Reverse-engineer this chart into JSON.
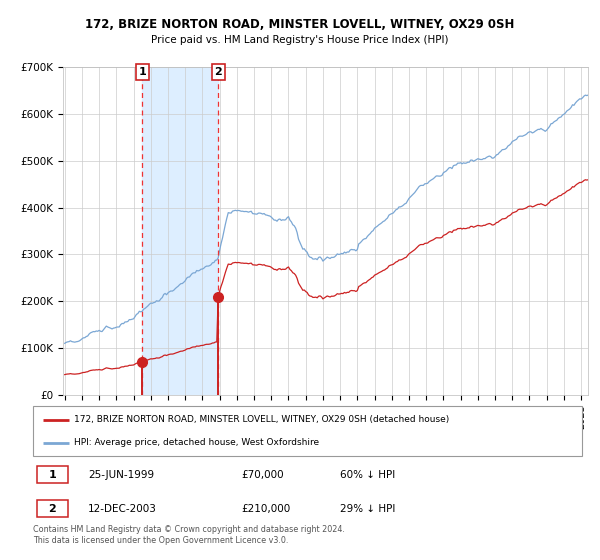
{
  "title": "172, BRIZE NORTON ROAD, MINSTER LOVELL, WITNEY, OX29 0SH",
  "subtitle": "Price paid vs. HM Land Registry's House Price Index (HPI)",
  "legend_line1": "172, BRIZE NORTON ROAD, MINSTER LOVELL, WITNEY, OX29 0SH (detached house)",
  "legend_line2": "HPI: Average price, detached house, West Oxfordshire",
  "table_row1": [
    "1",
    "25-JUN-1999",
    "£70,000",
    "60% ↓ HPI"
  ],
  "table_row2": [
    "2",
    "12-DEC-2003",
    "£210,000",
    "29% ↓ HPI"
  ],
  "footnote": "Contains HM Land Registry data © Crown copyright and database right 2024.\nThis data is licensed under the Open Government Licence v3.0.",
  "hpi_color": "#7ba7d4",
  "price_color": "#cc2222",
  "dashed_color": "#ee3333",
  "shade_color": "#ddeeff",
  "ylim": [
    0,
    700000
  ],
  "yticks": [
    0,
    100000,
    200000,
    300000,
    400000,
    500000,
    600000,
    700000
  ],
  "ytick_labels": [
    "£0",
    "£100K",
    "£200K",
    "£300K",
    "£400K",
    "£500K",
    "£600K",
    "£700K"
  ],
  "start_year": 1995,
  "end_year": 2025
}
